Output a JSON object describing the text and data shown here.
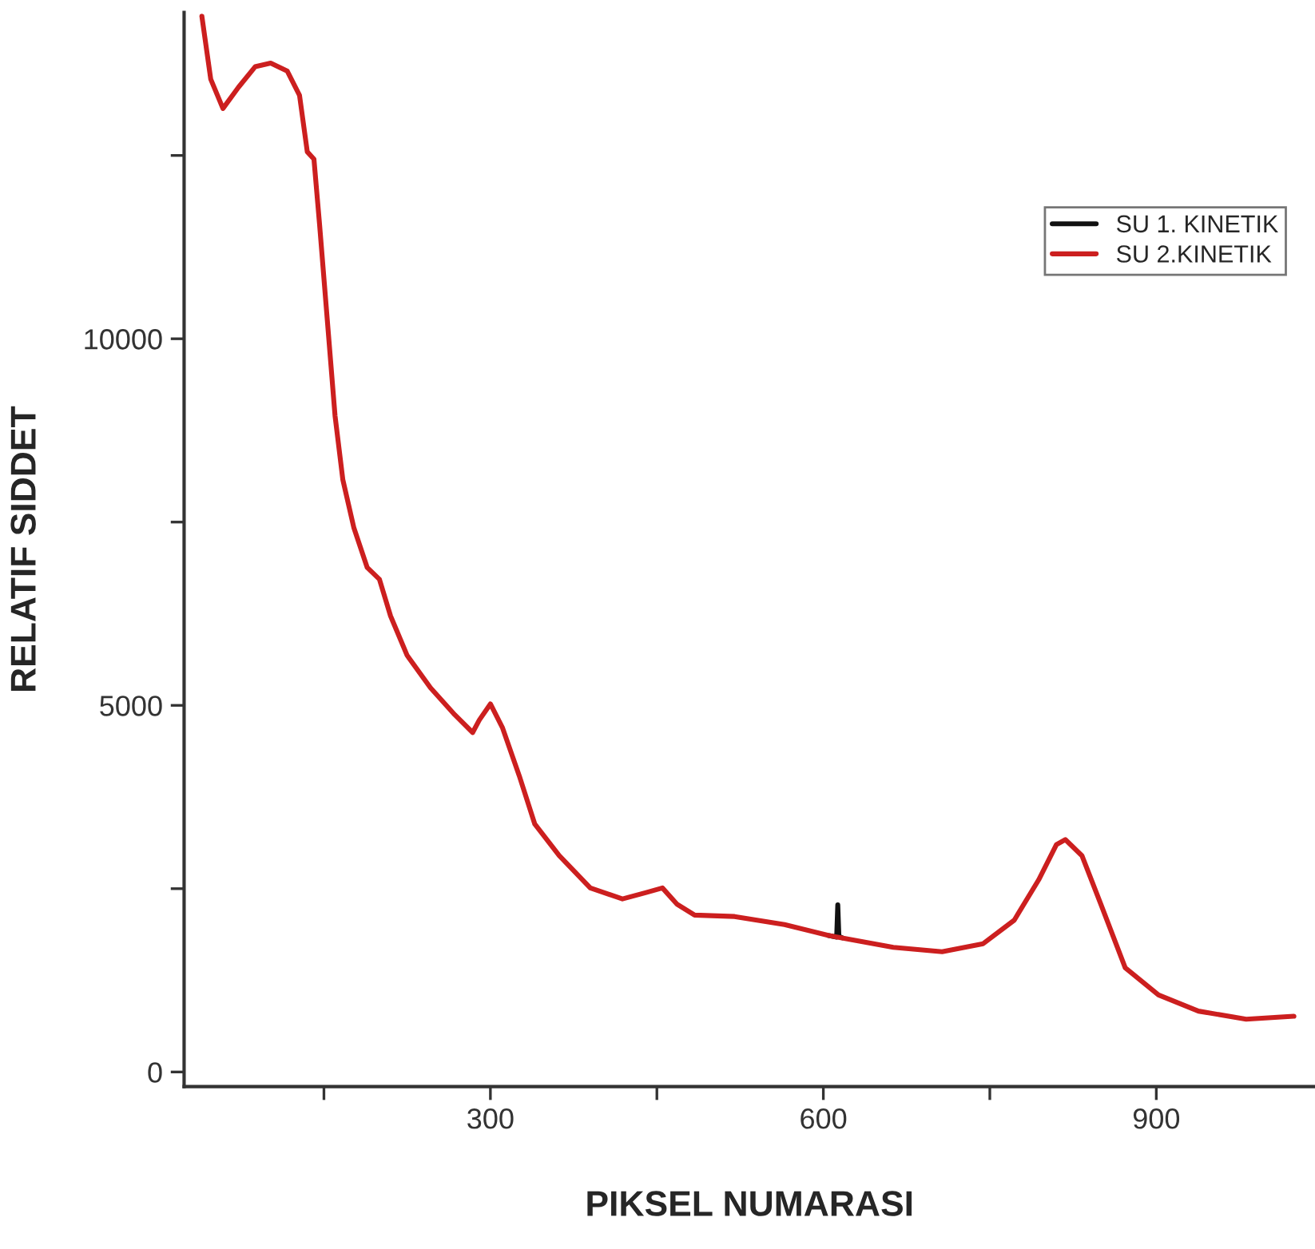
{
  "chart_data": {
    "type": "line",
    "xlabel": "PIKSEL NUMARASI",
    "ylabel": "RELATIF SIDDET",
    "xlim": [
      24,
      1043
    ],
    "ylim": [
      -200,
      14450
    ],
    "xticks": [
      {
        "value": 150,
        "label": null
      },
      300,
      {
        "value": 450,
        "label": null
      },
      600,
      {
        "value": 750,
        "label": null
      },
      900
    ],
    "yticks": [
      0,
      {
        "value": 2500,
        "label": null
      },
      5000,
      {
        "value": 7500,
        "label": null
      },
      10000,
      {
        "value": 12500,
        "label": null
      }
    ],
    "grid": false,
    "legend": "top right",
    "marker": "none",
    "line_style": "solid",
    "series": [
      {
        "name": "SU 1. KINETIK",
        "color": "#111111",
        "x": [
          605,
          612,
          613,
          614,
          617
        ],
        "values": [
          1860,
          1840,
          2280,
          1850,
          1830
        ]
      },
      {
        "name": "SU 2.KINETIK",
        "color": "#cc1f1f",
        "x": [
          40,
          48,
          59,
          73,
          88,
          102,
          117,
          128,
          135,
          141,
          146,
          153,
          160,
          167,
          177,
          189,
          200,
          210,
          225,
          246,
          268,
          284,
          290,
          300,
          311,
          326,
          340,
          362,
          390,
          419,
          441,
          455,
          468,
          484,
          520,
          565,
          605,
          663,
          707,
          744,
          772,
          794,
          810,
          818,
          833,
          850,
          872,
          902,
          938,
          981,
          1024
        ],
        "values": [
          14400,
          13540,
          13140,
          13430,
          13710,
          13760,
          13650,
          13320,
          12550,
          12450,
          11570,
          10260,
          8950,
          8080,
          7420,
          6880,
          6720,
          6220,
          5680,
          5240,
          4870,
          4630,
          4800,
          5020,
          4690,
          4040,
          3380,
          2950,
          2510,
          2360,
          2450,
          2510,
          2290,
          2140,
          2120,
          2010,
          1860,
          1700,
          1640,
          1750,
          2070,
          2620,
          3100,
          3170,
          2950,
          2290,
          1420,
          1050,
          830,
          720,
          760
        ]
      }
    ]
  }
}
